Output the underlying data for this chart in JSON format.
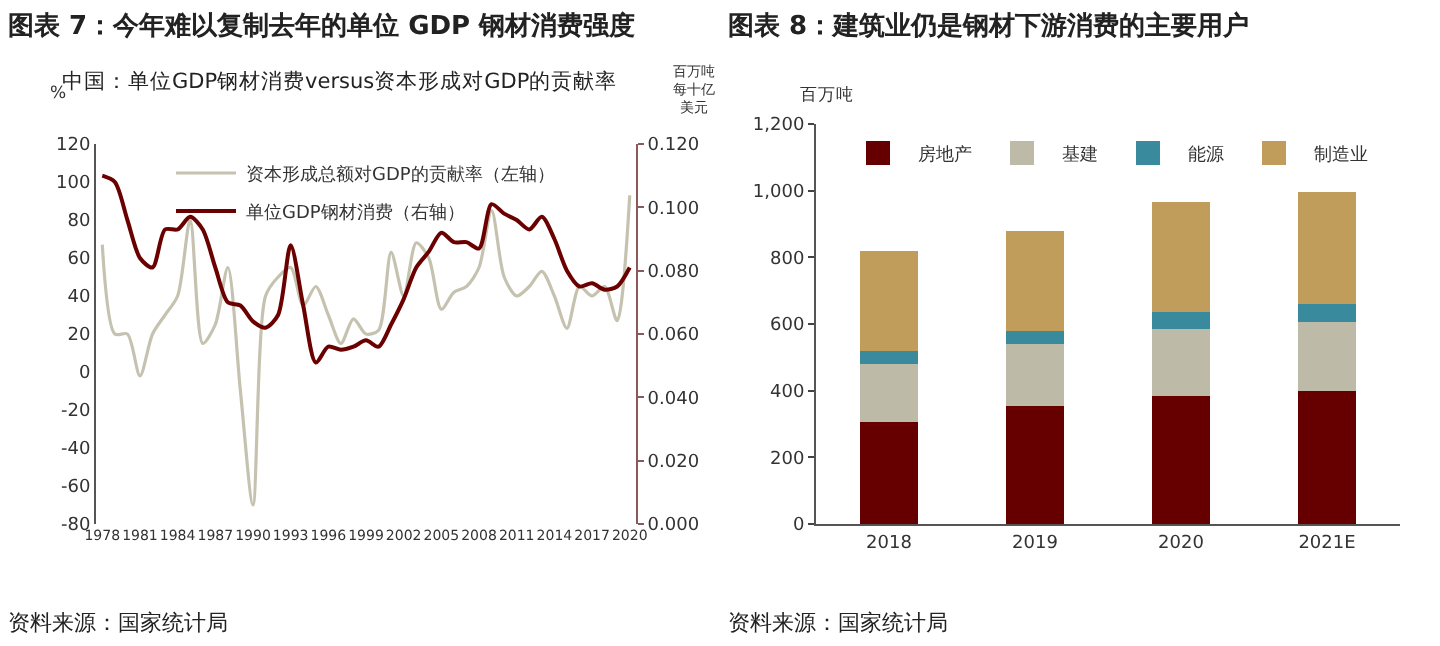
{
  "chart_data": [
    {
      "type": "line",
      "title": "图表 7：今年难以复制去年的单位 GDP 钢材消费强度",
      "subtitle": "中国：单位GDP钢材消费versus资本形成对GDP的贡献率",
      "ylabel": "%",
      "y2label": "百万吨每十亿美元",
      "x": [
        1978,
        1979,
        1980,
        1981,
        1982,
        1983,
        1984,
        1985,
        1986,
        1987,
        1988,
        1989,
        1990,
        1991,
        1992,
        1993,
        1994,
        1995,
        1996,
        1997,
        1998,
        1999,
        2000,
        2001,
        2002,
        2003,
        2004,
        2005,
        2006,
        2007,
        2008,
        2009,
        2010,
        2011,
        2012,
        2013,
        2014,
        2015,
        2016,
        2017,
        2018,
        2019,
        2020
      ],
      "series": [
        {
          "name": "资本形成总额对GDP的贡献率（左轴）",
          "color": "#c5c2b0",
          "values": [
            67,
            20,
            20,
            -2,
            20,
            30,
            40,
            80,
            15,
            25,
            55,
            -10,
            -70,
            40,
            50,
            55,
            35,
            45,
            30,
            15,
            28,
            20,
            22,
            63,
            40,
            68,
            60,
            33,
            42,
            45,
            55,
            85,
            50,
            40,
            45,
            53,
            40,
            23,
            45,
            40,
            45,
            27,
            93
          ]
        },
        {
          "name": "单位GDP钢材消费（右轴）",
          "color": "#6b0000",
          "axis": "y2",
          "values": [
            0.11,
            0.108,
            0.096,
            0.084,
            0.081,
            0.093,
            0.093,
            0.097,
            0.093,
            0.081,
            0.07,
            0.069,
            0.064,
            0.062,
            0.066,
            0.088,
            0.069,
            0.051,
            0.056,
            0.055,
            0.056,
            0.058,
            0.056,
            0.063,
            0.071,
            0.081,
            0.086,
            0.092,
            0.089,
            0.089,
            0.087,
            0.101,
            0.098,
            0.096,
            0.093,
            0.097,
            0.09,
            0.08,
            0.075,
            0.076,
            0.074,
            0.075,
            0.081
          ]
        }
      ],
      "xlim": [
        1977.5,
        2020.5
      ],
      "xticks": [
        1978,
        1981,
        1984,
        1987,
        1990,
        1993,
        1996,
        1999,
        2002,
        2005,
        2008,
        2011,
        2014,
        2017,
        2020
      ],
      "ylim": [
        -80,
        120
      ],
      "yticks": [
        -80,
        -60,
        -40,
        -20,
        0,
        20,
        40,
        60,
        80,
        100,
        120
      ],
      "y2lim": [
        0,
        0.12
      ],
      "y2ticks": [
        {
          "value": 0,
          "label": "0.000"
        },
        {
          "value": 0.02,
          "label": "0.020"
        },
        {
          "value": 0.04,
          "label": "0.040"
        },
        {
          "value": 0.06,
          "label": "0.060"
        },
        {
          "value": 0.08,
          "label": "0.080"
        },
        {
          "value": 0.1,
          "label": "0.100"
        },
        {
          "value": 0.12,
          "label": "0.120"
        }
      ],
      "grid": false,
      "legend": "top",
      "marker": "none",
      "line_style": "solid",
      "annotations": [
        "资料来源：国家统计局"
      ]
    },
    {
      "type": "bar",
      "title": "图表 8：建筑业仍是钢材下游消费的主要用户",
      "ylabel": "百万吨",
      "stacked": true,
      "categories": [
        "2018",
        "2019",
        "2020",
        "2021E"
      ],
      "series": [
        {
          "name": "房地产",
          "color": "#660000",
          "values": [
            305,
            355,
            385,
            400
          ]
        },
        {
          "name": "基建",
          "color": "#bdbaa8",
          "values": [
            175,
            185,
            200,
            205
          ]
        },
        {
          "name": "能源",
          "color": "#3a8a9e",
          "values": [
            40,
            40,
            50,
            55
          ]
        },
        {
          "name": "制造业",
          "color": "#c19d5c",
          "values": [
            300,
            300,
            330,
            335
          ]
        }
      ],
      "ylim": [
        0,
        1200
      ],
      "yticks": [
        0,
        200,
        400,
        600,
        800,
        {
          "value": 1000,
          "label": "1,000"
        },
        {
          "value": 1200,
          "label": "1,200"
        }
      ],
      "grid": false,
      "legend": "top",
      "annotations": [
        "资料来源：国家统计局"
      ]
    }
  ]
}
